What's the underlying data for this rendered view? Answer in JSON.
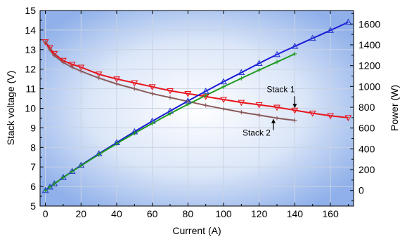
{
  "chart_data": {
    "type": "line",
    "xlabel": "Current (A)",
    "ylabel": "Stack voltage (V)",
    "y2label": "Power (W)",
    "xlim": [
      -3,
      173
    ],
    "ylim": [
      5,
      15
    ],
    "y2lim": [
      -150,
      1730
    ],
    "xticks": [
      0,
      20,
      40,
      60,
      80,
      100,
      120,
      140,
      160
    ],
    "yticks": [
      5,
      6,
      7,
      8,
      9,
      10,
      11,
      12,
      13,
      14,
      15
    ],
    "y2ticks": [
      0,
      200,
      400,
      600,
      800,
      1000,
      1200,
      1400,
      1600
    ],
    "grid": true,
    "series": [
      {
        "name": "Stack 1",
        "kind": "voltage",
        "axis": "left",
        "color": "#e8141c",
        "marker_color": "#e8141c",
        "marker": "triangle-down",
        "x": [
          0,
          2.5,
          5,
          10,
          15,
          20,
          30,
          40,
          50,
          60,
          70,
          80,
          90,
          100,
          110,
          120,
          130,
          140,
          150,
          160,
          170
        ],
        "y": [
          13.4,
          13.1,
          12.8,
          12.45,
          12.25,
          12.1,
          11.75,
          11.5,
          11.3,
          11.1,
          10.9,
          10.75,
          10.6,
          10.45,
          10.3,
          10.18,
          10.05,
          9.9,
          9.75,
          9.62,
          9.52
        ]
      },
      {
        "name": "Stack 2",
        "kind": "voltage",
        "axis": "left",
        "color": "#8b5a5a",
        "marker_color": "#8b5a5a",
        "marker": "plus",
        "x": [
          0,
          2.5,
          5,
          10,
          15,
          20,
          30,
          40,
          50,
          60,
          70,
          80,
          90,
          100,
          110,
          120,
          130,
          140
        ],
        "y": [
          13.4,
          13.0,
          12.7,
          12.35,
          12.1,
          11.9,
          11.55,
          11.25,
          11.0,
          10.75,
          10.55,
          10.35,
          10.15,
          9.97,
          9.8,
          9.65,
          9.5,
          9.38
        ]
      },
      {
        "name": "",
        "kind": "power",
        "axis": "right",
        "color": "#1a1ad8",
        "marker_color": "#2a3ad0",
        "marker": "triangle-up",
        "x": [
          0,
          2.5,
          5,
          10,
          15,
          20,
          30,
          40,
          50,
          60,
          70,
          80,
          90,
          100,
          110,
          120,
          130,
          140,
          150,
          160,
          170
        ],
        "y": [
          0,
          33,
          64,
          125,
          184,
          242,
          353,
          460,
          565,
          666,
          763,
          860,
          954,
          1045,
          1133,
          1222,
          1307,
          1386,
          1463,
          1539,
          1618
        ]
      },
      {
        "name": "",
        "kind": "power",
        "axis": "right",
        "color": "#1f9a1f",
        "marker_color": "#1f9a1f",
        "marker": "plus",
        "x": [
          0,
          2.5,
          5,
          10,
          15,
          20,
          30,
          40,
          50,
          60,
          70,
          80,
          90,
          100,
          110,
          120,
          130,
          140
        ],
        "y": [
          0,
          33,
          64,
          124,
          182,
          238,
          346,
          450,
          550,
          645,
          739,
          828,
          914,
          997,
          1078,
          1158,
          1235,
          1313
        ]
      }
    ],
    "annotations": [
      {
        "text": "Stack 1",
        "series": 0,
        "at_x": 140
      },
      {
        "text": "Stack 2",
        "series": 1,
        "at_x": 128
      }
    ]
  }
}
